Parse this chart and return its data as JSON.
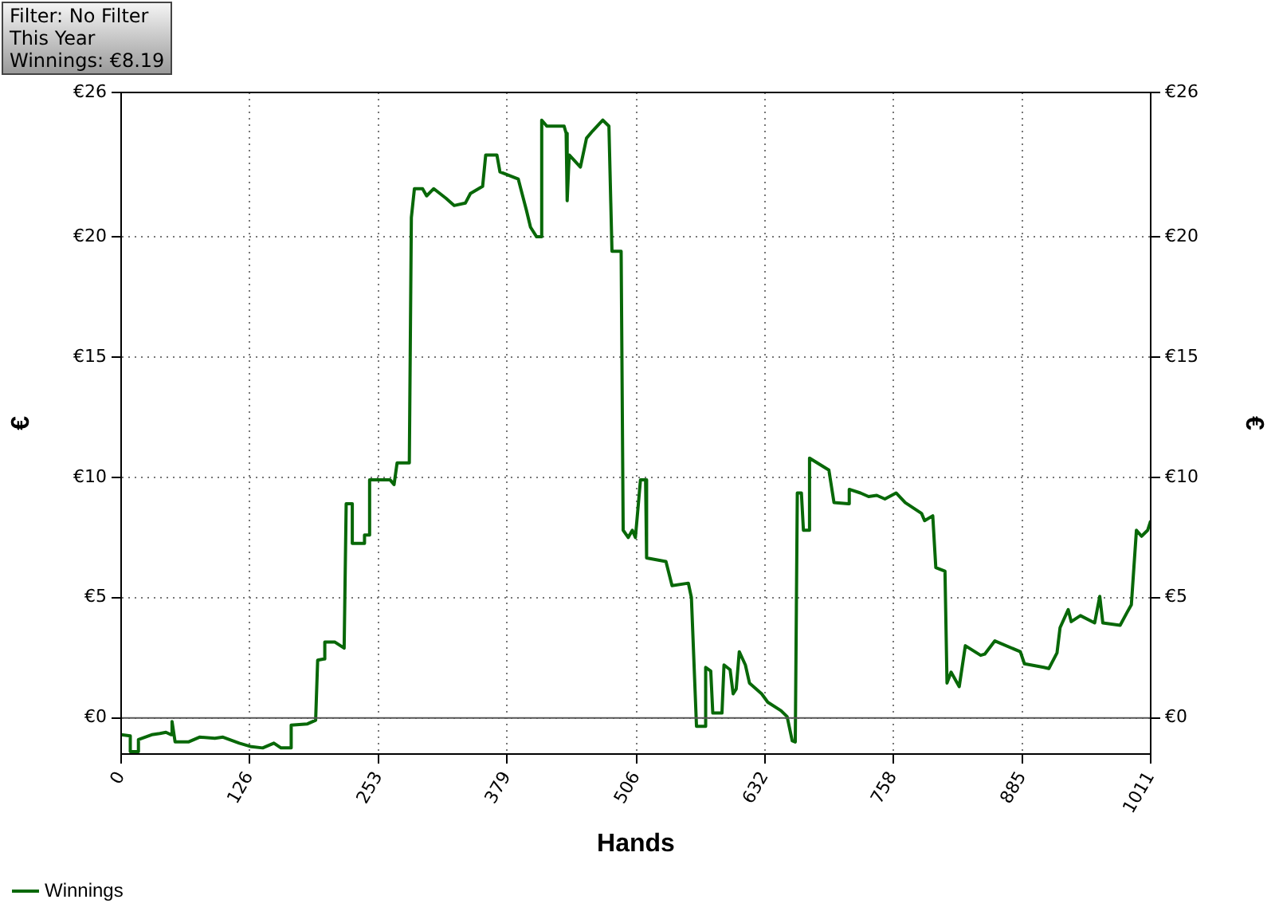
{
  "chart_data": {
    "type": "line",
    "annotations": [
      "Filter: No Filter",
      "This Year",
      "Winnings: €8.19"
    ],
    "xlabel": "Hands",
    "ylabel": "€",
    "y2label": "€",
    "series": [
      {
        "name": "Winnings",
        "color": "#086808",
        "x": [
          0,
          9,
          9,
          16,
          17,
          30,
          38,
          44,
          49,
          50,
          53,
          66,
          77,
          92,
          100,
          116,
          128,
          139,
          150,
          157,
          166,
          167,
          183,
          191,
          193,
          199,
          200,
          210,
          219,
          221,
          227,
          227,
          238,
          239,
          243,
          244,
          264,
          268,
          271,
          283,
          285,
          288,
          296,
          300,
          307,
          319,
          327,
          338,
          343,
          355,
          358,
          369,
          372,
          390,
          398,
          402,
          408,
          413,
          413,
          418,
          435,
          437,
          438,
          440,
          451,
          457,
          463,
          473,
          479,
          482,
          491,
          493,
          498,
          502,
          505,
          510,
          515,
          516,
          535,
          541,
          557,
          560,
          565,
          573,
          574,
          579,
          581,
          590,
          592,
          598,
          601,
          604,
          607,
          613,
          617,
          629,
          635,
          648,
          654,
          659,
          662,
          664,
          668,
          670,
          675,
          676,
          695,
          700,
          714,
          715,
          726,
          734,
          742,
          750,
          761,
          770,
          786,
          789,
          797,
          800,
          809,
          811,
          815,
          823,
          829,
          844,
          848,
          858,
          883,
          887,
          906,
          911,
          919,
          922,
          930,
          933,
          942,
          956,
          961,
          964,
          981,
          988,
          992,
          997,
          1002,
          1008,
          1011
        ],
        "values": [
          -0.7,
          -0.75,
          -1.4,
          -1.4,
          -0.9,
          -0.7,
          -0.65,
          -0.6,
          -0.7,
          -0.15,
          -1.0,
          -1.0,
          -0.8,
          -0.85,
          -0.8,
          -1.05,
          -1.2,
          -1.25,
          -1.05,
          -1.25,
          -1.25,
          -0.3,
          -0.25,
          -0.1,
          2.4,
          2.45,
          3.15,
          3.15,
          2.9,
          8.9,
          8.9,
          7.25,
          7.25,
          7.6,
          7.6,
          9.9,
          9.9,
          9.7,
          10.6,
          10.6,
          20.8,
          22.0,
          22.0,
          21.7,
          22.0,
          21.6,
          21.3,
          21.4,
          21.8,
          22.1,
          23.4,
          23.4,
          22.7,
          22.4,
          21.1,
          20.4,
          20.0,
          20.0,
          24.85,
          24.6,
          24.6,
          24.3,
          21.5,
          23.4,
          22.9,
          24.1,
          24.4,
          24.85,
          24.6,
          19.4,
          19.4,
          7.8,
          7.5,
          7.8,
          7.5,
          9.9,
          9.9,
          6.65,
          6.5,
          5.5,
          5.6,
          5.0,
          -0.35,
          -0.35,
          2.1,
          1.95,
          0.2,
          0.2,
          2.2,
          2.0,
          1.0,
          1.2,
          2.75,
          2.2,
          1.45,
          1.0,
          0.65,
          0.3,
          0.05,
          -0.95,
          -1.0,
          9.35,
          9.35,
          7.8,
          7.8,
          10.8,
          10.3,
          8.95,
          8.9,
          9.5,
          9.35,
          9.2,
          9.25,
          9.1,
          9.35,
          8.95,
          8.5,
          8.2,
          8.4,
          6.25,
          6.1,
          1.45,
          1.9,
          1.3,
          3.0,
          2.6,
          2.65,
          3.2,
          2.75,
          2.25,
          2.1,
          2.05,
          2.7,
          3.75,
          4.5,
          4.0,
          4.25,
          3.95,
          5.05,
          3.95,
          3.85,
          4.4,
          4.7,
          7.8,
          7.55,
          7.8,
          8.19
        ]
      }
    ],
    "xlim": [
      0,
      1011
    ],
    "xticks": [
      0,
      126,
      253,
      379,
      506,
      632,
      758,
      885,
      1011
    ],
    "ylim": [
      -1.5,
      26
    ],
    "yticks": [
      {
        "value": 0,
        "label": "€0"
      },
      {
        "value": 5,
        "label": "€5"
      },
      {
        "value": 10,
        "label": "€10"
      },
      {
        "value": 15,
        "label": "€15"
      },
      {
        "value": 20,
        "label": "€20"
      },
      {
        "value": 26,
        "label": "€26"
      }
    ],
    "y2lim": [
      -1.5,
      26
    ],
    "y2ticks": [
      {
        "value": 0,
        "label": "€0"
      },
      {
        "value": 5,
        "label": "€5"
      },
      {
        "value": 10,
        "label": "€10"
      },
      {
        "value": 15,
        "label": "€15"
      },
      {
        "value": 20,
        "label": "€20"
      },
      {
        "value": 26,
        "label": "€26"
      }
    ],
    "ref_lines": [
      {
        "axis": "y",
        "value": 0,
        "color": "#555555"
      }
    ],
    "grid": true,
    "legend": "bottom left"
  }
}
